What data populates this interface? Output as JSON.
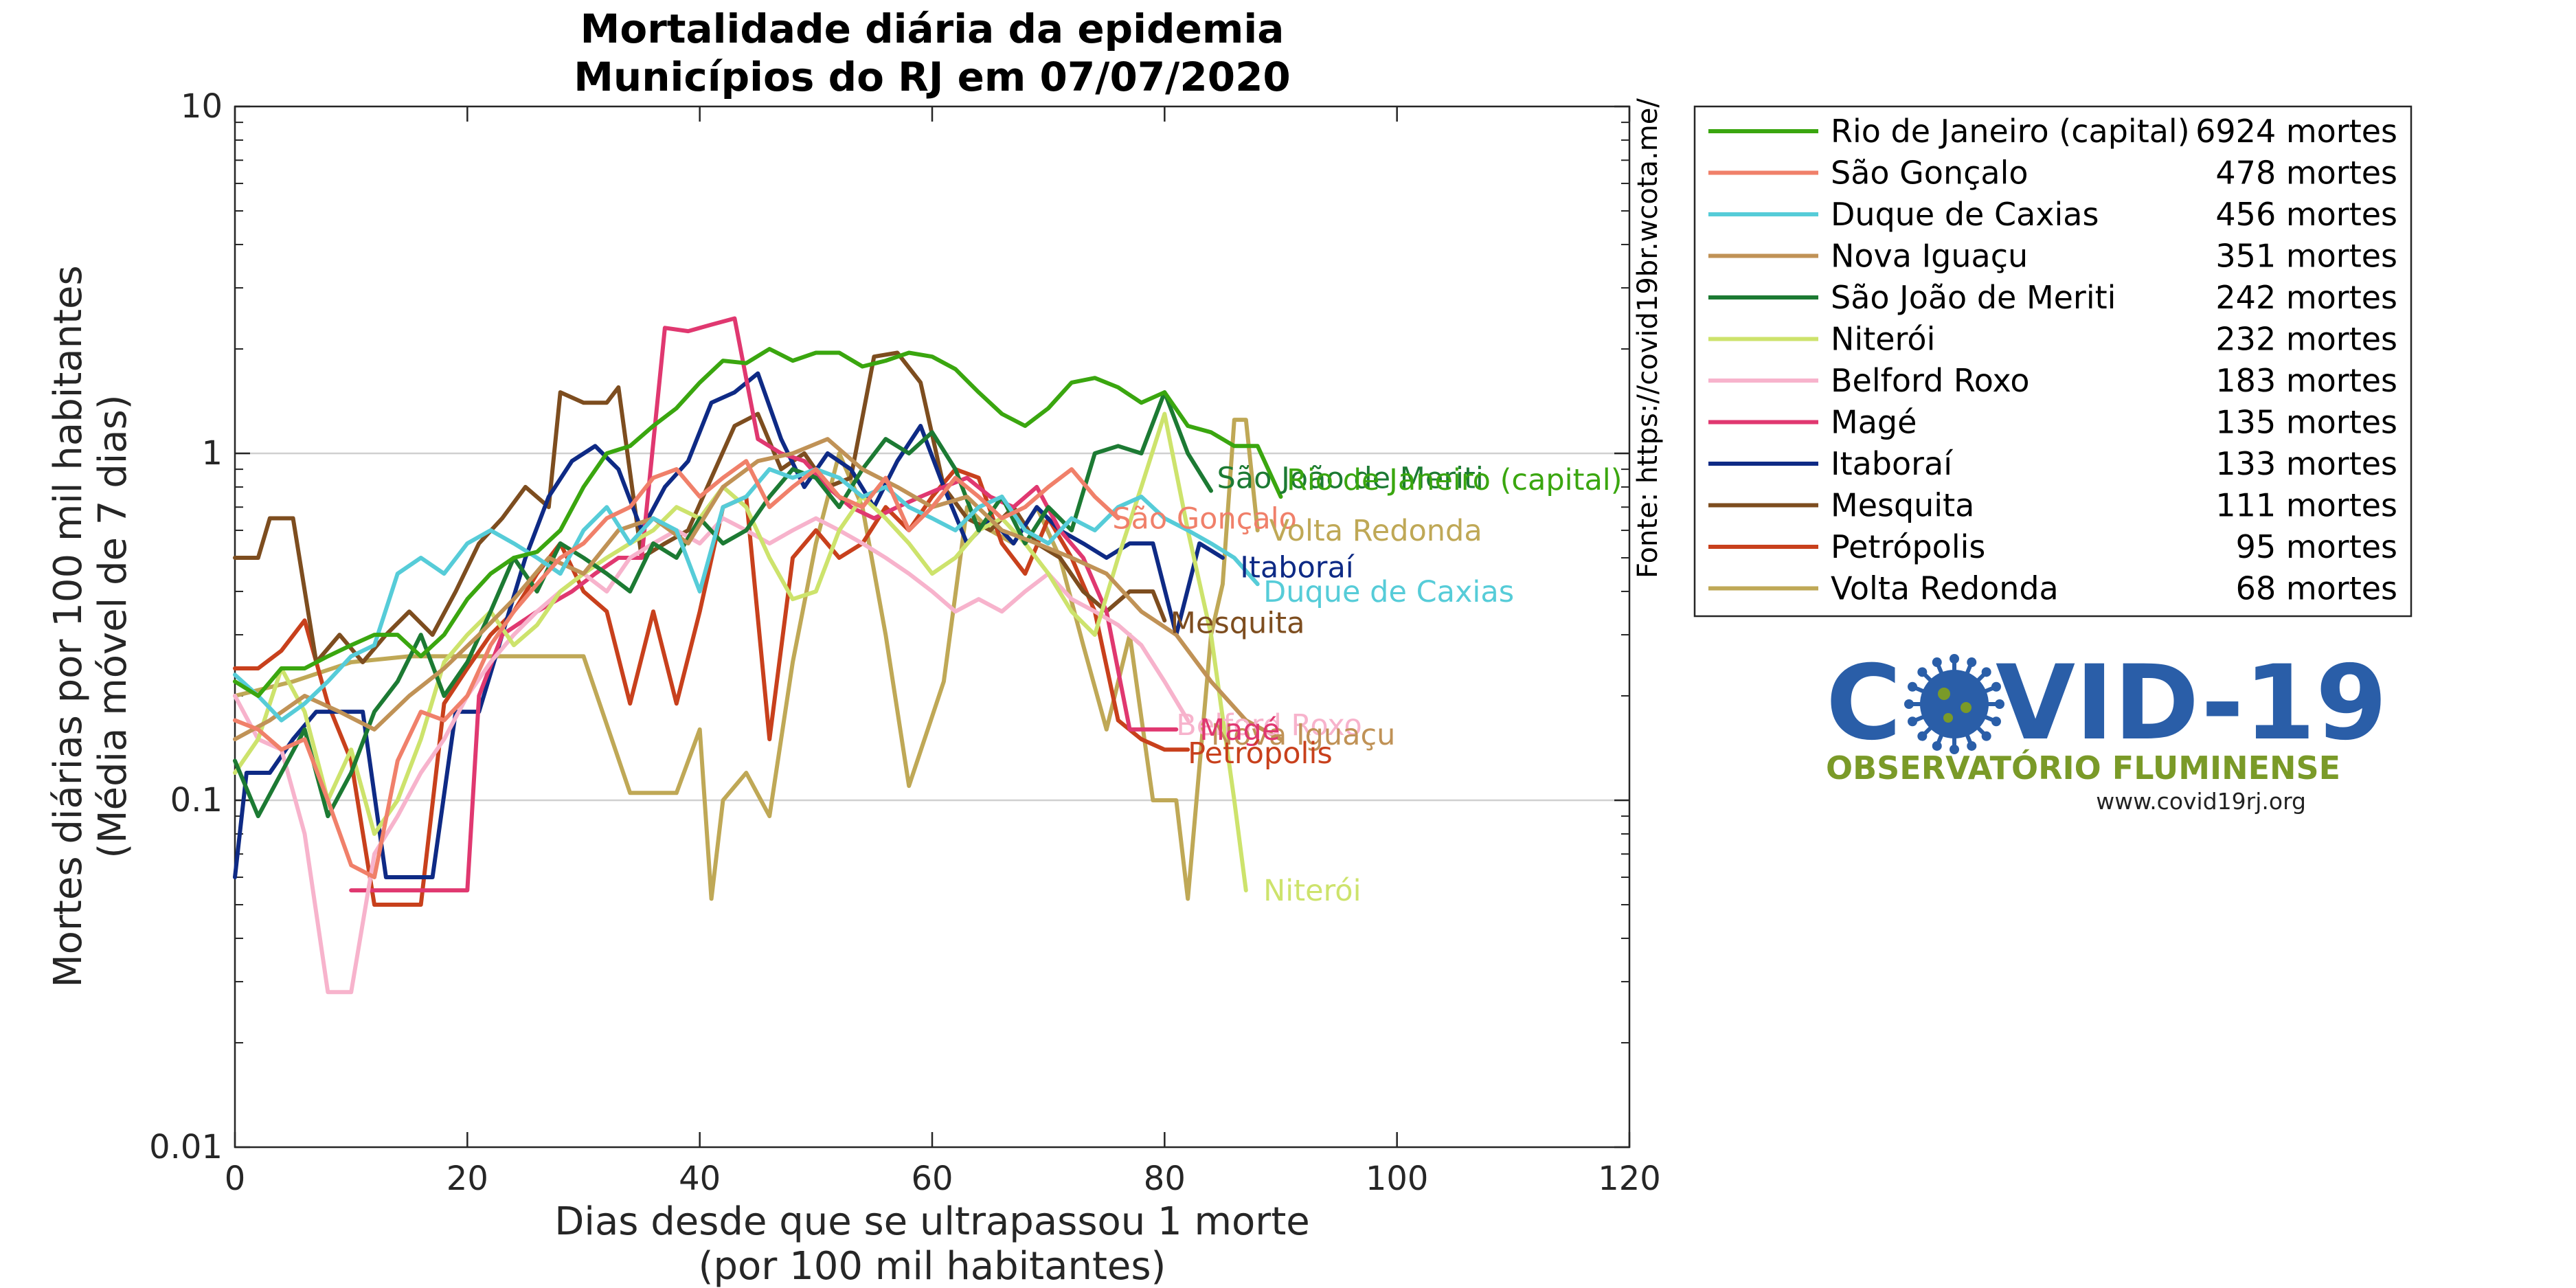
{
  "chart_data": {
    "type": "line",
    "title": [
      "Mortalidade diária da epidemia",
      "Municípios do RJ em 07/07/2020"
    ],
    "xlabel": [
      "Dias desde que se ultrapassou 1 morte",
      "(por 100 mil habitantes)"
    ],
    "ylabel": [
      "Mortes diárias por 100 mil habitantes",
      "(Média móvel de 7 dias)"
    ],
    "xlim": [
      0,
      120
    ],
    "ylim": [
      0.01,
      10
    ],
    "yscale": "log",
    "xticks": [
      "0",
      "20",
      "40",
      "60",
      "80",
      "100",
      "120"
    ],
    "yticks": [
      "0.01",
      "0.1",
      "1",
      "10"
    ],
    "grid": "horizontal major lines",
    "legend_position": "right",
    "source": "Fonte: https://covid19br.wcota.me/",
    "series": [
      {
        "name": "Rio de Janeiro (capital)",
        "deaths": "6924 mortes",
        "color": "#3aa60f",
        "x": [
          0,
          2,
          4,
          6,
          8,
          10,
          12,
          14,
          16,
          18,
          20,
          22,
          24,
          26,
          28,
          30,
          32,
          34,
          36,
          38,
          40,
          42,
          44,
          46,
          48,
          50,
          52,
          54,
          56,
          58,
          60,
          62,
          64,
          66,
          68,
          70,
          72,
          74,
          76,
          78,
          80,
          82,
          84,
          86,
          88,
          90
        ],
        "y": [
          0.22,
          0.2,
          0.24,
          0.24,
          0.26,
          0.28,
          0.3,
          0.3,
          0.26,
          0.3,
          0.38,
          0.45,
          0.5,
          0.52,
          0.6,
          0.8,
          1.0,
          1.05,
          1.2,
          1.35,
          1.6,
          1.85,
          1.82,
          2.0,
          1.85,
          1.95,
          1.95,
          1.78,
          1.85,
          1.95,
          1.9,
          1.75,
          1.5,
          1.3,
          1.2,
          1.35,
          1.6,
          1.65,
          1.55,
          1.4,
          1.5,
          1.2,
          1.15,
          1.05,
          1.05,
          0.75
        ]
      },
      {
        "name": "São Gonçalo",
        "deaths": "478 mortes",
        "color": "#f0806a",
        "x": [
          0,
          2,
          4,
          6,
          8,
          10,
          12,
          14,
          16,
          18,
          20,
          22,
          24,
          26,
          28,
          30,
          32,
          34,
          36,
          38,
          40,
          42,
          44,
          46,
          48,
          50,
          52,
          54,
          56,
          58,
          60,
          62,
          64,
          66,
          68,
          70,
          72,
          74,
          76
        ],
        "y": [
          0.17,
          0.16,
          0.14,
          0.15,
          0.1,
          0.065,
          0.06,
          0.13,
          0.18,
          0.17,
          0.2,
          0.28,
          0.35,
          0.42,
          0.5,
          0.55,
          0.65,
          0.7,
          0.85,
          0.9,
          0.75,
          0.85,
          0.95,
          0.7,
          0.8,
          0.9,
          0.75,
          0.7,
          0.85,
          0.6,
          0.7,
          0.85,
          0.75,
          0.65,
          0.7,
          0.8,
          0.9,
          0.75,
          0.65
        ]
      },
      {
        "name": "Duque de Caxias",
        "deaths": "456 mortes",
        "color": "#56ccd8",
        "x": [
          0,
          2,
          4,
          6,
          8,
          10,
          12,
          14,
          16,
          18,
          20,
          22,
          24,
          26,
          28,
          30,
          32,
          34,
          36,
          38,
          40,
          42,
          44,
          46,
          48,
          50,
          52,
          54,
          56,
          58,
          60,
          62,
          64,
          66,
          68,
          70,
          72,
          74,
          76,
          78,
          80,
          82,
          84,
          86,
          88
        ],
        "y": [
          0.23,
          0.2,
          0.17,
          0.19,
          0.22,
          0.26,
          0.28,
          0.45,
          0.5,
          0.45,
          0.55,
          0.6,
          0.55,
          0.5,
          0.45,
          0.6,
          0.7,
          0.55,
          0.65,
          0.6,
          0.4,
          0.7,
          0.75,
          0.9,
          0.85,
          0.9,
          0.85,
          0.75,
          0.8,
          0.7,
          0.65,
          0.6,
          0.7,
          0.75,
          0.6,
          0.55,
          0.65,
          0.6,
          0.7,
          0.75,
          0.65,
          0.6,
          0.55,
          0.5,
          0.42
        ]
      },
      {
        "name": "Nova Iguaçu",
        "deaths": "351 mortes",
        "color": "#c09256",
        "x": [
          0,
          3,
          6,
          9,
          12,
          15,
          18,
          21,
          24,
          27,
          30,
          33,
          36,
          39,
          42,
          45,
          48,
          51,
          54,
          57,
          60,
          63,
          66,
          69,
          72,
          75,
          78,
          81,
          84,
          87,
          90
        ],
        "y": [
          0.15,
          0.17,
          0.2,
          0.18,
          0.16,
          0.2,
          0.24,
          0.3,
          0.38,
          0.5,
          0.45,
          0.6,
          0.65,
          0.55,
          0.8,
          0.95,
          1.0,
          1.1,
          0.9,
          0.8,
          0.7,
          0.75,
          0.6,
          0.55,
          0.5,
          0.45,
          0.35,
          0.3,
          0.22,
          0.17,
          0.15
        ]
      },
      {
        "name": "São João de Meriti",
        "deaths": "242 mortes",
        "color": "#1c7a33",
        "x": [
          0,
          2,
          4,
          6,
          8,
          10,
          12,
          14,
          16,
          18,
          20,
          22,
          24,
          26,
          28,
          30,
          32,
          34,
          36,
          38,
          40,
          42,
          44,
          46,
          48,
          50,
          52,
          54,
          56,
          58,
          60,
          62,
          64,
          66,
          68,
          70,
          72,
          74,
          76,
          78,
          80,
          82,
          84
        ],
        "y": [
          0.13,
          0.09,
          0.12,
          0.16,
          0.09,
          0.12,
          0.18,
          0.22,
          0.3,
          0.2,
          0.25,
          0.35,
          0.5,
          0.4,
          0.55,
          0.5,
          0.45,
          0.4,
          0.55,
          0.5,
          0.65,
          0.55,
          0.6,
          0.75,
          0.9,
          0.85,
          0.7,
          0.9,
          1.1,
          1.0,
          1.15,
          0.9,
          0.6,
          0.75,
          0.55,
          0.7,
          0.6,
          1.0,
          1.05,
          1.0,
          1.5,
          1.0,
          0.78
        ]
      },
      {
        "name": "Niterói",
        "deaths": "232 mortes",
        "color": "#cde36c",
        "x": [
          0,
          2,
          4,
          6,
          8,
          10,
          12,
          14,
          16,
          18,
          20,
          22,
          24,
          26,
          28,
          30,
          32,
          34,
          36,
          38,
          40,
          42,
          44,
          46,
          48,
          50,
          52,
          54,
          56,
          58,
          60,
          62,
          64,
          66,
          68,
          70,
          72,
          74,
          76,
          78,
          80,
          82,
          84,
          86,
          87
        ],
        "y": [
          0.12,
          0.15,
          0.24,
          0.18,
          0.1,
          0.14,
          0.08,
          0.1,
          0.15,
          0.25,
          0.3,
          0.35,
          0.28,
          0.32,
          0.4,
          0.45,
          0.5,
          0.55,
          0.6,
          0.7,
          0.65,
          0.8,
          0.7,
          0.5,
          0.38,
          0.4,
          0.6,
          0.75,
          0.65,
          0.55,
          0.45,
          0.5,
          0.6,
          0.65,
          0.55,
          0.45,
          0.35,
          0.3,
          0.5,
          0.8,
          1.3,
          0.6,
          0.3,
          0.1,
          0.055
        ]
      },
      {
        "name": "Belford Roxo",
        "deaths": "183 mortes",
        "color": "#f7b3cc",
        "x": [
          0,
          2,
          4,
          6,
          8,
          10,
          12,
          14,
          16,
          18,
          20,
          22,
          24,
          26,
          28,
          30,
          32,
          34,
          36,
          38,
          40,
          42,
          44,
          46,
          48,
          50,
          52,
          54,
          56,
          58,
          60,
          62,
          64,
          66,
          68,
          70,
          72,
          74,
          76,
          78,
          80,
          82
        ],
        "y": [
          0.2,
          0.15,
          0.14,
          0.08,
          0.028,
          0.028,
          0.07,
          0.09,
          0.12,
          0.15,
          0.2,
          0.25,
          0.3,
          0.35,
          0.4,
          0.45,
          0.4,
          0.5,
          0.55,
          0.6,
          0.55,
          0.65,
          0.6,
          0.55,
          0.6,
          0.65,
          0.6,
          0.55,
          0.5,
          0.45,
          0.4,
          0.35,
          0.38,
          0.35,
          0.4,
          0.45,
          0.38,
          0.35,
          0.32,
          0.28,
          0.22,
          0.17
        ]
      },
      {
        "name": "Magé",
        "deaths": "135 mortes",
        "color": "#e03870",
        "x": [
          10,
          12,
          14,
          17,
          20,
          21,
          23,
          26,
          29,
          31,
          33,
          35,
          37,
          39,
          41,
          43,
          45,
          47,
          49,
          51,
          53,
          55,
          57,
          59,
          61,
          63,
          65,
          67,
          69,
          71,
          73,
          75,
          77,
          79,
          81
        ],
        "y": [
          0.055,
          0.055,
          0.055,
          0.055,
          0.055,
          0.2,
          0.3,
          0.35,
          0.4,
          0.45,
          0.5,
          0.5,
          2.3,
          2.25,
          2.35,
          2.45,
          1.1,
          1.0,
          0.95,
          0.8,
          0.7,
          0.65,
          0.7,
          0.75,
          0.8,
          0.85,
          0.75,
          0.7,
          0.8,
          0.6,
          0.5,
          0.35,
          0.16,
          0.16,
          0.16
        ]
      },
      {
        "name": "Itaboraí",
        "deaths": "133 mortes",
        "color": "#0e2a85",
        "x": [
          0,
          1,
          3,
          5,
          7,
          9,
          11,
          13,
          15,
          17,
          19,
          21,
          23,
          25,
          27,
          29,
          31,
          33,
          35,
          37,
          39,
          41,
          43,
          45,
          47,
          49,
          51,
          53,
          55,
          57,
          59,
          61,
          63,
          65,
          67,
          69,
          71,
          73,
          75,
          77,
          79,
          81,
          83,
          85
        ],
        "y": [
          0.06,
          0.12,
          0.12,
          0.15,
          0.18,
          0.18,
          0.18,
          0.06,
          0.06,
          0.06,
          0.18,
          0.18,
          0.3,
          0.5,
          0.75,
          0.95,
          1.05,
          0.9,
          0.6,
          0.8,
          0.95,
          1.4,
          1.5,
          1.7,
          1.1,
          0.8,
          1.0,
          0.9,
          0.7,
          0.95,
          1.2,
          0.8,
          0.55,
          0.65,
          0.55,
          0.7,
          0.6,
          0.55,
          0.5,
          0.55,
          0.55,
          0.3,
          0.55,
          0.5
        ]
      },
      {
        "name": "Mesquita",
        "deaths": "111 mortes",
        "color": "#7d4d1f",
        "x": [
          0,
          2,
          3,
          5,
          7,
          9,
          11,
          13,
          15,
          17,
          19,
          21,
          23,
          25,
          27,
          28,
          30,
          32,
          33,
          35,
          37,
          39,
          41,
          43,
          45,
          47,
          49,
          51,
          53,
          55,
          57,
          59,
          61,
          63,
          65,
          67,
          69,
          71,
          73,
          75,
          77,
          79,
          80
        ],
        "y": [
          0.5,
          0.5,
          0.65,
          0.65,
          0.25,
          0.3,
          0.25,
          0.3,
          0.35,
          0.3,
          0.4,
          0.55,
          0.65,
          0.8,
          0.7,
          1.5,
          1.4,
          1.4,
          1.55,
          0.5,
          0.55,
          0.6,
          0.85,
          1.2,
          1.3,
          0.9,
          1.0,
          0.8,
          0.85,
          1.9,
          1.95,
          1.6,
          0.8,
          0.65,
          0.6,
          0.7,
          0.55,
          0.5,
          0.4,
          0.35,
          0.4,
          0.4,
          0.33
        ]
      },
      {
        "name": "Petrópolis",
        "deaths": "95 mortes",
        "color": "#c8401c",
        "x": [
          0,
          2,
          4,
          6,
          8,
          10,
          12,
          14,
          16,
          18,
          20,
          22,
          24,
          26,
          28,
          30,
          32,
          34,
          36,
          38,
          40,
          42,
          44,
          46,
          48,
          50,
          52,
          54,
          56,
          58,
          60,
          62,
          64,
          66,
          68,
          70,
          72,
          74,
          76,
          78,
          80,
          82
        ],
        "y": [
          0.24,
          0.24,
          0.27,
          0.33,
          0.19,
          0.13,
          0.05,
          0.05,
          0.05,
          0.19,
          0.24,
          0.3,
          0.35,
          0.45,
          0.55,
          0.4,
          0.35,
          0.19,
          0.35,
          0.19,
          0.35,
          0.7,
          0.75,
          0.15,
          0.5,
          0.6,
          0.5,
          0.55,
          0.7,
          0.6,
          0.75,
          0.9,
          0.85,
          0.55,
          0.45,
          0.65,
          0.5,
          0.35,
          0.17,
          0.15,
          0.14,
          0.14
        ]
      },
      {
        "name": "Volta Redonda",
        "deaths": "68 mortes",
        "color": "#bfa856",
        "x": [
          0,
          5,
          10,
          15,
          20,
          25,
          30,
          34,
          36,
          38,
          40,
          41,
          42,
          44,
          46,
          48,
          50,
          52,
          54,
          56,
          58,
          61,
          63,
          65,
          67,
          69,
          71,
          73,
          75,
          77,
          79,
          81,
          82,
          84,
          85,
          86,
          87,
          88
        ],
        "y": [
          0.2,
          0.22,
          0.25,
          0.26,
          0.26,
          0.26,
          0.26,
          0.105,
          0.105,
          0.105,
          0.16,
          0.052,
          0.1,
          0.12,
          0.09,
          0.25,
          0.55,
          1.0,
          0.7,
          0.3,
          0.11,
          0.22,
          0.7,
          0.6,
          0.55,
          0.7,
          0.5,
          0.28,
          0.16,
          0.3,
          0.1,
          0.1,
          0.052,
          0.3,
          0.42,
          1.25,
          1.25,
          0.6
        ]
      }
    ],
    "end_labels": [
      {
        "series": "São João de Meriti",
        "text": "São João de Meriti",
        "x": 84.5,
        "y": 0.85
      },
      {
        "series": "Rio de Janeiro (capital)",
        "text": "Rio de Janeiro (capital)",
        "x": 90.5,
        "y": 0.84
      },
      {
        "series": "São Gonçalo",
        "text": "São Gonçalo",
        "x": 75.5,
        "y": 0.65
      },
      {
        "series": "Volta Redonda",
        "text": "Volta Redonda",
        "x": 89,
        "y": 0.6
      },
      {
        "series": "Itaboraí",
        "text": "Itaboraí",
        "x": 86.5,
        "y": 0.47
      },
      {
        "series": "Duque de Caxias",
        "text": "Duque de Caxias",
        "x": 88.5,
        "y": 0.4
      },
      {
        "series": "Mesquita",
        "text": "Mesquita",
        "x": 80.5,
        "y": 0.325
      },
      {
        "series": "Belford Roxo",
        "text": "Belford Roxo",
        "x": 81,
        "y": 0.165
      },
      {
        "series": "Nova Iguaçu",
        "text": "Nova Iguaçu",
        "x": 84,
        "y": 0.155
      },
      {
        "series": "Magé",
        "text": "Magé",
        "x": 83,
        "y": 0.16
      },
      {
        "series": "Petrópolis",
        "text": "Petrópolis",
        "x": 82,
        "y": 0.137
      },
      {
        "series": "Niterói",
        "text": "Niterói",
        "x": 88.5,
        "y": 0.055
      }
    ]
  },
  "logo": {
    "main_left": "C",
    "main_right": "VID-19",
    "subtitle": "OBSERVATÓRIO FLUMINENSE",
    "url": "www.covid19rj.org",
    "colors": {
      "blue": "#2a5ea8",
      "green": "#7a9a28"
    }
  }
}
